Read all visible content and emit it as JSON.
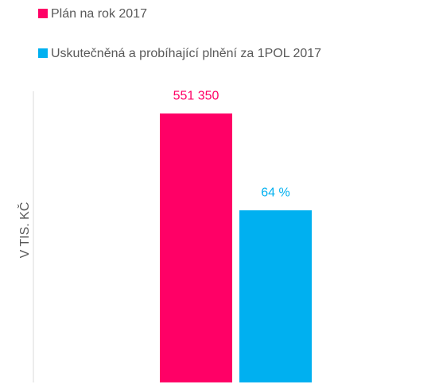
{
  "chart_data": {
    "type": "bar",
    "y_label": "V TIS. KČ",
    "categories": [
      null
    ],
    "series": [
      {
        "name": "Plán na rok 2017",
        "color": "#ff0066",
        "values": [
          551350
        ],
        "value_labels": [
          "551 350"
        ]
      },
      {
        "name": "Uskutečněná a probíhající plnění za 1POL 2017",
        "color": "#00b0f0",
        "values": [
          352864
        ],
        "value_labels": [
          "64 %"
        ]
      }
    ],
    "ylim": [
      0,
      597000
    ],
    "legend": "top-left"
  }
}
